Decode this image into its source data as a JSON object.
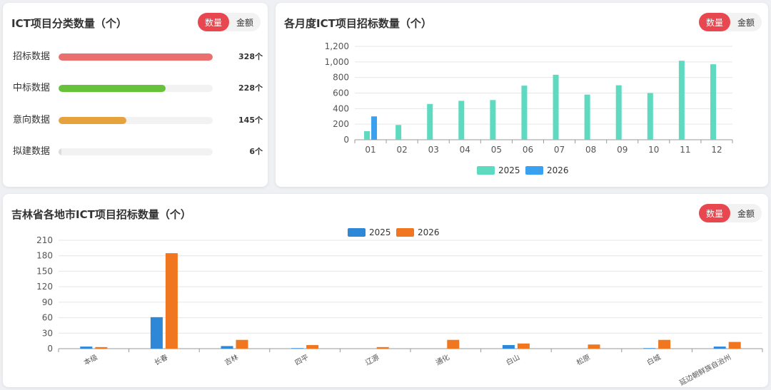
{
  "category_card": {
    "title": "ICT项目分类数量（个）",
    "toggle": {
      "count_label": "数量",
      "amount_label": "金额",
      "active": "count"
    },
    "max": 328,
    "items": [
      {
        "label": "招标数据",
        "value": 328,
        "value_text": "328个",
        "color": "#ec6f70"
      },
      {
        "label": "中标数据",
        "value": 228,
        "value_text": "228个",
        "color": "#67c23a"
      },
      {
        "label": "意向数据",
        "value": 145,
        "value_text": "145个",
        "color": "#e6a23c"
      },
      {
        "label": "拟建数据",
        "value": 6,
        "value_text": "6个",
        "color": "#dcdcdc"
      }
    ]
  },
  "monthly_card": {
    "title": "各月度ICT项目招标数量（个）",
    "toggle": {
      "count_label": "数量",
      "amount_label": "金额",
      "active": "count"
    }
  },
  "city_card": {
    "title": "吉林省各地市ICT项目招标数量（个）",
    "toggle": {
      "count_label": "数量",
      "amount_label": "金额",
      "active": "count"
    }
  },
  "chart_data": [
    {
      "type": "bar",
      "title": "各月度ICT项目招标数量（个）",
      "categories": [
        "01",
        "02",
        "03",
        "04",
        "05",
        "06",
        "07",
        "08",
        "09",
        "10",
        "11",
        "12"
      ],
      "series": [
        {
          "name": "2025",
          "color": "#5ddac0",
          "values": [
            110,
            190,
            460,
            500,
            510,
            695,
            835,
            580,
            700,
            600,
            1015,
            970
          ]
        },
        {
          "name": "2026",
          "color": "#3aa1f0",
          "values": [
            300,
            null,
            null,
            null,
            null,
            null,
            null,
            null,
            null,
            null,
            null,
            null
          ]
        }
      ],
      "ylim": [
        0,
        1200
      ],
      "yticks": [
        0,
        200,
        400,
        600,
        800,
        1000,
        1200
      ],
      "ytick_labels": [
        "0",
        "200",
        "400",
        "600",
        "800",
        "1,000",
        "1,200"
      ],
      "legend": "bottom-center",
      "grid": true
    },
    {
      "type": "bar",
      "title": "吉林省各地市ICT项目招标数量（个）",
      "categories": [
        "本级",
        "长春",
        "吉林",
        "四平",
        "辽源",
        "通化",
        "白山",
        "松原",
        "白城",
        "延边朝鲜族自治州"
      ],
      "series": [
        {
          "name": "2025",
          "color": "#2f87d8",
          "values": [
            4,
            61,
            5,
            1,
            0,
            0,
            7,
            0,
            1,
            4
          ]
        },
        {
          "name": "2026",
          "color": "#f0771f",
          "values": [
            3,
            185,
            17,
            7,
            3,
            17,
            10,
            8,
            17,
            13
          ]
        }
      ],
      "ylim": [
        0,
        210
      ],
      "yticks": [
        0,
        30,
        60,
        90,
        120,
        150,
        180,
        210
      ],
      "legend": "top-center",
      "grid": true
    }
  ]
}
